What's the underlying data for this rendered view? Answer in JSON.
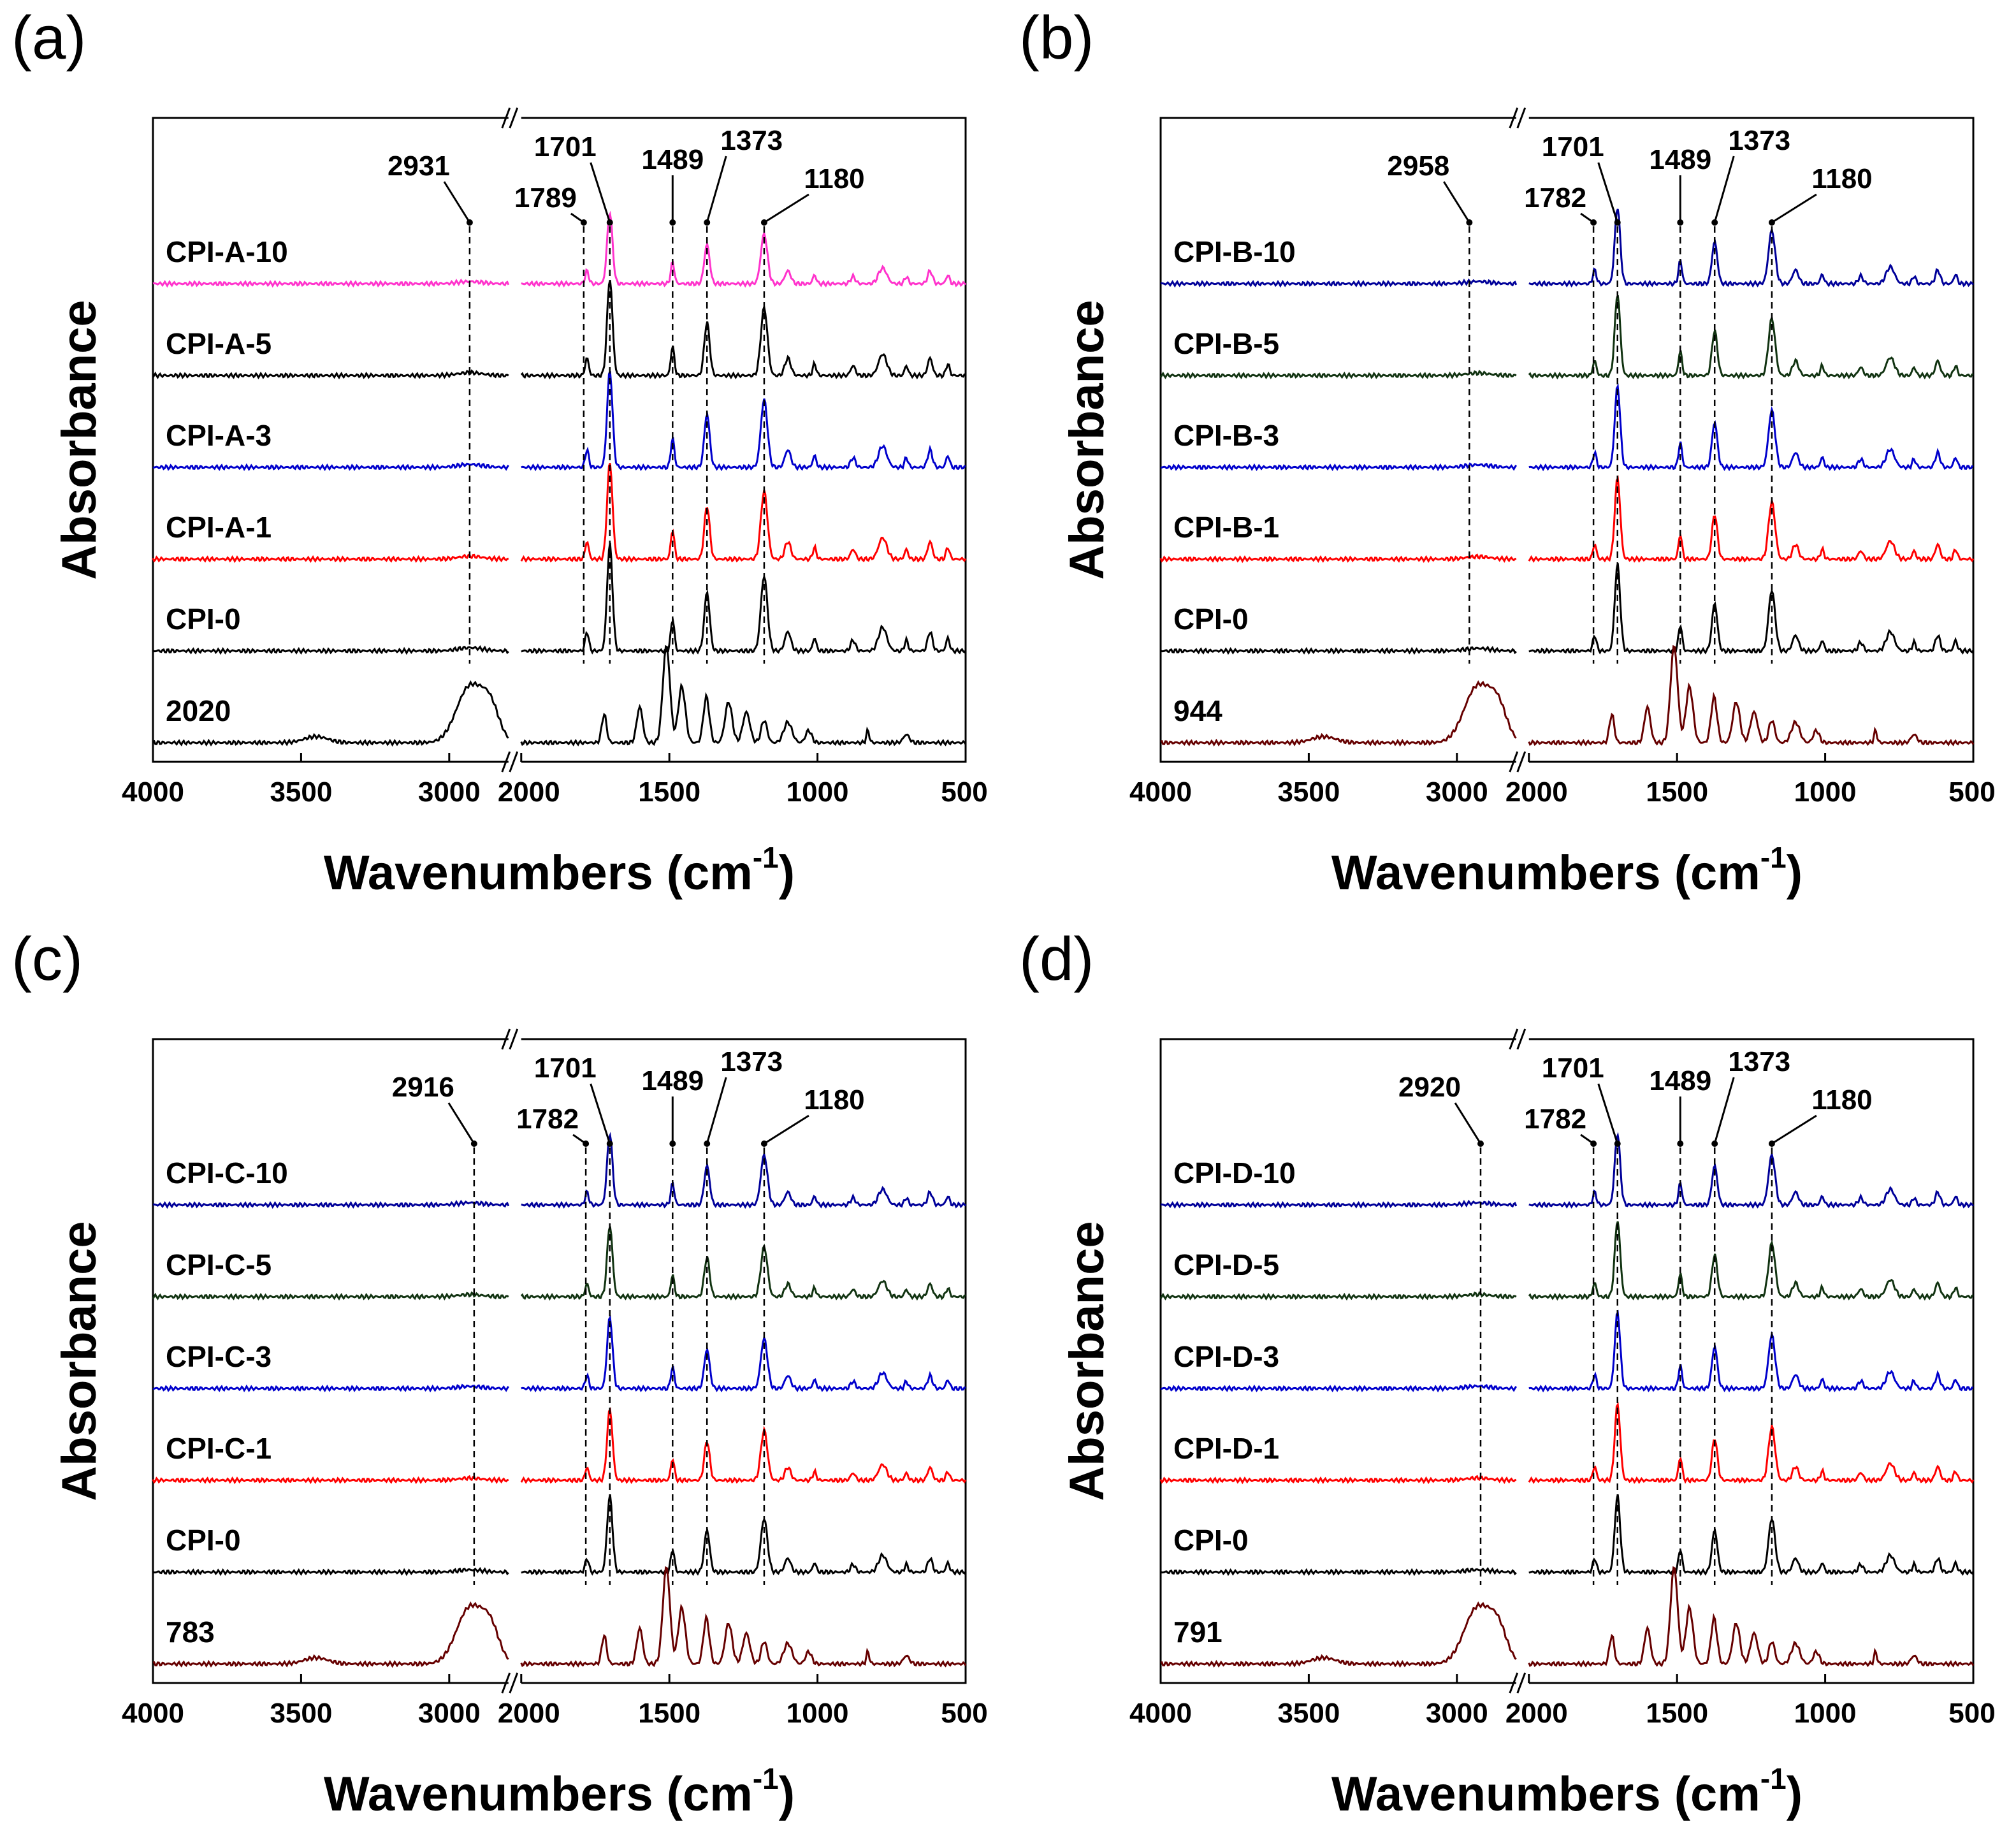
{
  "chart_data": [
    {
      "panel": "(a)",
      "type": "line",
      "xlabel": "Wavenumbers (cm",
      "xlabel_sup": "-1",
      "ylabel": "Absorbance",
      "xlim": [
        4000,
        500
      ],
      "x_break": [
        2800,
        2000
      ],
      "x_ticks": [
        "4000",
        "3500",
        "3000",
        "2000",
        "1500",
        "1000",
        "500"
      ],
      "series": [
        {
          "name": "CPI-A-10",
          "color": "#ff33cc",
          "profile": "cpi",
          "peak_scale": 0.7,
          "offset": 5
        },
        {
          "name": "CPI-A-5",
          "color": "#000000",
          "profile": "cpi",
          "peak_scale": 0.95,
          "offset": 4
        },
        {
          "name": "CPI-A-3",
          "color": "#0000cc",
          "profile": "cpi",
          "peak_scale": 0.95,
          "offset": 3
        },
        {
          "name": "CPI-A-1",
          "color": "#ff0000",
          "profile": "cpi",
          "peak_scale": 0.95,
          "offset": 2
        },
        {
          "name": "CPI-0",
          "color": "#000000",
          "profile": "cpi",
          "peak_scale": 1.05,
          "offset": 1
        },
        {
          "name": "2020",
          "color": "#000000",
          "profile": "resin",
          "peak_scale": 1.0,
          "offset": 0
        }
      ],
      "annotations": [
        {
          "label": "2931",
          "x": 2931
        },
        {
          "label": "1789",
          "x": 1789
        },
        {
          "label": "1701",
          "x": 1701
        },
        {
          "label": "1489",
          "x": 1489
        },
        {
          "label": "1373",
          "x": 1373
        },
        {
          "label": "1180",
          "x": 1180
        }
      ]
    },
    {
      "panel": "(b)",
      "type": "line",
      "xlabel": "Wavenumbers (cm",
      "xlabel_sup": "-1",
      "ylabel": "Absorbance",
      "xlim": [
        4000,
        500
      ],
      "x_break": [
        2800,
        2000
      ],
      "x_ticks": [
        "4000",
        "3500",
        "3000",
        "2000",
        "1500",
        "1000",
        "500"
      ],
      "series": [
        {
          "name": "CPI-B-10",
          "color": "#000099",
          "profile": "cpi",
          "peak_scale": 0.75,
          "offset": 5
        },
        {
          "name": "CPI-B-5",
          "color": "#113311",
          "profile": "cpi",
          "peak_scale": 0.8,
          "offset": 4
        },
        {
          "name": "CPI-B-3",
          "color": "#0000cc",
          "profile": "cpi",
          "peak_scale": 0.8,
          "offset": 3
        },
        {
          "name": "CPI-B-1",
          "color": "#ff0000",
          "profile": "cpi",
          "peak_scale": 0.8,
          "offset": 2
        },
        {
          "name": "CPI-0",
          "color": "#000000",
          "profile": "cpi",
          "peak_scale": 0.85,
          "offset": 1
        },
        {
          "name": "944",
          "color": "#660000",
          "profile": "resin",
          "peak_scale": 1.0,
          "offset": 0
        }
      ],
      "annotations": [
        {
          "label": "2958",
          "x": 2958
        },
        {
          "label": "1782",
          "x": 1782
        },
        {
          "label": "1701",
          "x": 1701
        },
        {
          "label": "1489",
          "x": 1489
        },
        {
          "label": "1373",
          "x": 1373
        },
        {
          "label": "1180",
          "x": 1180
        }
      ]
    },
    {
      "panel": "(c)",
      "type": "line",
      "xlabel": "Wavenumbers (cm",
      "xlabel_sup": "-1",
      "ylabel": "Absorbance",
      "xlim": [
        4000,
        500
      ],
      "x_break": [
        2800,
        2000
      ],
      "x_ticks": [
        "4000",
        "3500",
        "3000",
        "2000",
        "1500",
        "1000",
        "500"
      ],
      "series": [
        {
          "name": "CPI-C-10",
          "color": "#000099",
          "profile": "cpi",
          "peak_scale": 0.7,
          "offset": 5
        },
        {
          "name": "CPI-C-5",
          "color": "#113311",
          "profile": "cpi",
          "peak_scale": 0.7,
          "offset": 4
        },
        {
          "name": "CPI-C-3",
          "color": "#0000cc",
          "profile": "cpi",
          "peak_scale": 0.7,
          "offset": 3
        },
        {
          "name": "CPI-C-1",
          "color": "#ff0000",
          "profile": "cpi",
          "peak_scale": 0.7,
          "offset": 2
        },
        {
          "name": "CPI-0",
          "color": "#000000",
          "profile": "cpi",
          "peak_scale": 0.75,
          "offset": 1
        },
        {
          "name": "783",
          "color": "#660000",
          "profile": "resin",
          "peak_scale": 1.0,
          "offset": 0
        }
      ],
      "annotations": [
        {
          "label": "2916",
          "x": 2916
        },
        {
          "label": "1782",
          "x": 1782
        },
        {
          "label": "1701",
          "x": 1701
        },
        {
          "label": "1489",
          "x": 1489
        },
        {
          "label": "1373",
          "x": 1373
        },
        {
          "label": "1180",
          "x": 1180
        }
      ]
    },
    {
      "panel": "(d)",
      "type": "line",
      "xlabel": "Wavenumbers (cm",
      "xlabel_sup": "-1",
      "ylabel": "Absorbance",
      "xlim": [
        4000,
        500
      ],
      "x_break": [
        2800,
        2000
      ],
      "x_ticks": [
        "4000",
        "3500",
        "3000",
        "2000",
        "1500",
        "1000",
        "500"
      ],
      "series": [
        {
          "name": "CPI-D-10",
          "color": "#000099",
          "profile": "cpi",
          "peak_scale": 0.7,
          "offset": 5
        },
        {
          "name": "CPI-D-5",
          "color": "#113311",
          "profile": "cpi",
          "peak_scale": 0.75,
          "offset": 4
        },
        {
          "name": "CPI-D-3",
          "color": "#0000cc",
          "profile": "cpi",
          "peak_scale": 0.75,
          "offset": 3
        },
        {
          "name": "CPI-D-1",
          "color": "#ff0000",
          "profile": "cpi",
          "peak_scale": 0.75,
          "offset": 2
        },
        {
          "name": "CPI-0",
          "color": "#000000",
          "profile": "cpi",
          "peak_scale": 0.75,
          "offset": 1
        },
        {
          "name": "791",
          "color": "#660000",
          "profile": "resin",
          "peak_scale": 1.0,
          "offset": 0
        }
      ],
      "annotations": [
        {
          "label": "2920",
          "x": 2920
        },
        {
          "label": "1782",
          "x": 1782
        },
        {
          "label": "1701",
          "x": 1701
        },
        {
          "label": "1489",
          "x": 1489
        },
        {
          "label": "1373",
          "x": 1373
        },
        {
          "label": "1180",
          "x": 1180
        }
      ]
    }
  ]
}
